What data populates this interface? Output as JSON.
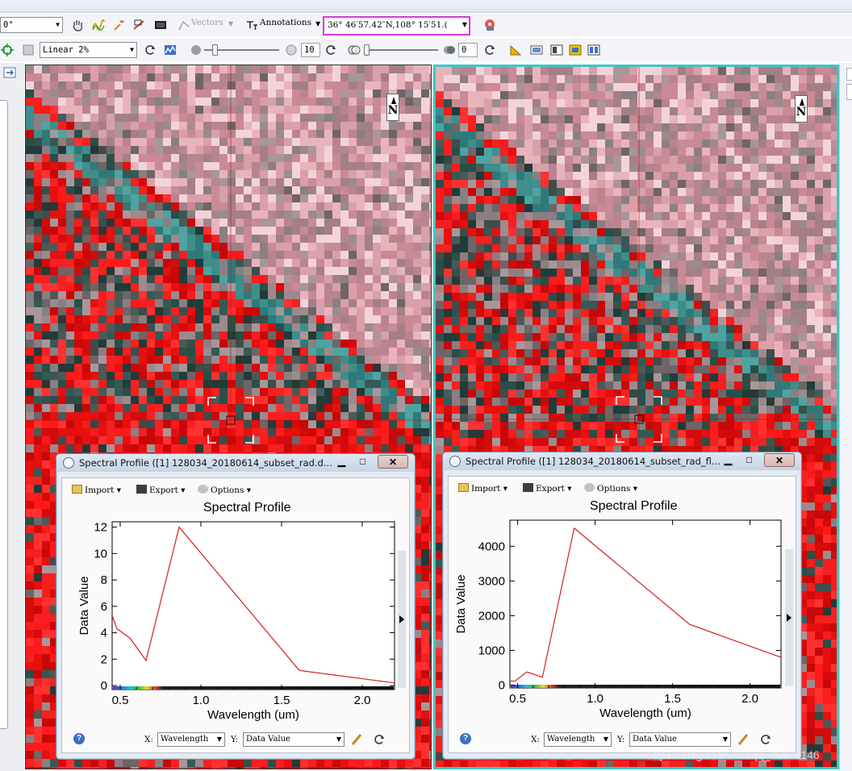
{
  "toolbar1": {
    "rotation_value": "0°",
    "vectors_label": "Vectors",
    "annotations_label": "Annotations",
    "latlon_value": "36° 46′57.42″N,108° 15′51.("
  },
  "toolbar2": {
    "stretch_value": "Linear 2%",
    "brightness_value": "10",
    "transparency_value": "0"
  },
  "views": [
    {
      "north_label": "N",
      "profile": {
        "window_title": "Spectral Profile ([1] 128034_20180614_subset_rad.d...",
        "import_label": "Import",
        "export_label": "Export",
        "options_label": "Options",
        "plot_title": "Spectral Profile",
        "x_select_label": "X:",
        "x_select_value": "Wavelength",
        "y_select_label": "Y:",
        "y_select_value": "Data Value"
      }
    },
    {
      "north_label": "N",
      "profile": {
        "window_title": "Spectral Profile ([1] 128034_20180614_subset_rad_fl...",
        "import_label": "Import",
        "export_label": "Export",
        "options_label": "Options",
        "plot_title": "Spectral Profile",
        "x_select_label": "X:",
        "x_select_value": "Wavelength",
        "y_select_label": "Y:",
        "y_select_value": "Data Value"
      }
    }
  ],
  "chart_data": [
    {
      "type": "line",
      "title": "Spectral Profile",
      "xlabel": "Wavelength (um)",
      "ylabel": "Data Value",
      "xlim": [
        0.45,
        2.2
      ],
      "ylim": [
        -0.3,
        12.4
      ],
      "xticks": [
        "0.5",
        "1.0",
        "1.5",
        "2.0"
      ],
      "yticks": [
        "0",
        "2",
        "4",
        "6",
        "8",
        "10",
        "12"
      ],
      "line_color": "#d42020",
      "series": [
        {
          "x": [
            0.45,
            0.48,
            0.56,
            0.66,
            0.865,
            1.61,
            2.2
          ],
          "y": [
            5.3,
            4.3,
            3.6,
            1.9,
            12.0,
            1.15,
            0.2
          ]
        }
      ]
    },
    {
      "type": "line",
      "title": "Spectral Profile",
      "xlabel": "Wavelength (um)",
      "ylabel": "Data Value",
      "xlim": [
        0.45,
        2.2
      ],
      "ylim": [
        -80,
        4750
      ],
      "xticks": [
        "0.5",
        "1.0",
        "1.5",
        "2.0"
      ],
      "yticks": [
        "0",
        "1000",
        "2000",
        "3000",
        "4000"
      ],
      "line_color": "#d42020",
      "series": [
        {
          "x": [
            0.45,
            0.48,
            0.56,
            0.66,
            0.865,
            1.61,
            2.2
          ],
          "y": [
            120,
            110,
            380,
            230,
            4520,
            1750,
            800
          ]
        }
      ]
    }
  ],
  "watermark": "https://blog.csdn.net/qq_46071146"
}
